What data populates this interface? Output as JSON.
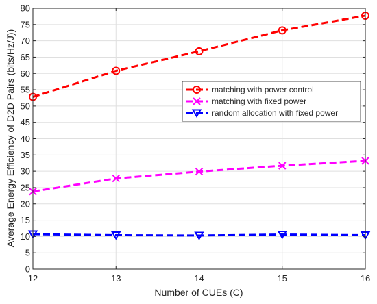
{
  "chart_data": {
    "type": "line",
    "title": "",
    "xlabel": "Number of CUEs (C)",
    "ylabel": "Average Energy Efficiency of D2D Pairs (bits/Hz/J))",
    "x": [
      12,
      13,
      14,
      15,
      16
    ],
    "xlim": [
      12,
      16
    ],
    "ylim": [
      0,
      80
    ],
    "xticks": [
      12,
      13,
      14,
      15,
      16
    ],
    "yticks": [
      0,
      5,
      10,
      15,
      20,
      25,
      30,
      35,
      40,
      45,
      50,
      55,
      60,
      65,
      70,
      75,
      80
    ],
    "grid": true,
    "legend_position": "center-right",
    "series": [
      {
        "name": "matching with power control",
        "values": [
          52.8,
          60.8,
          66.8,
          73.2,
          77.7
        ],
        "color": "#ff0000",
        "marker": "circle",
        "line_style": "dashed"
      },
      {
        "name": "matching with fixed power",
        "values": [
          23.8,
          27.8,
          29.9,
          31.7,
          33.2
        ],
        "color": "#ff00ff",
        "marker": "x",
        "line_style": "dashed"
      },
      {
        "name": "random allocation with fixed power",
        "values": [
          10.7,
          10.4,
          10.3,
          10.6,
          10.4
        ],
        "color": "#0000ff",
        "marker": "triangle-down",
        "line_style": "dashed"
      }
    ]
  }
}
